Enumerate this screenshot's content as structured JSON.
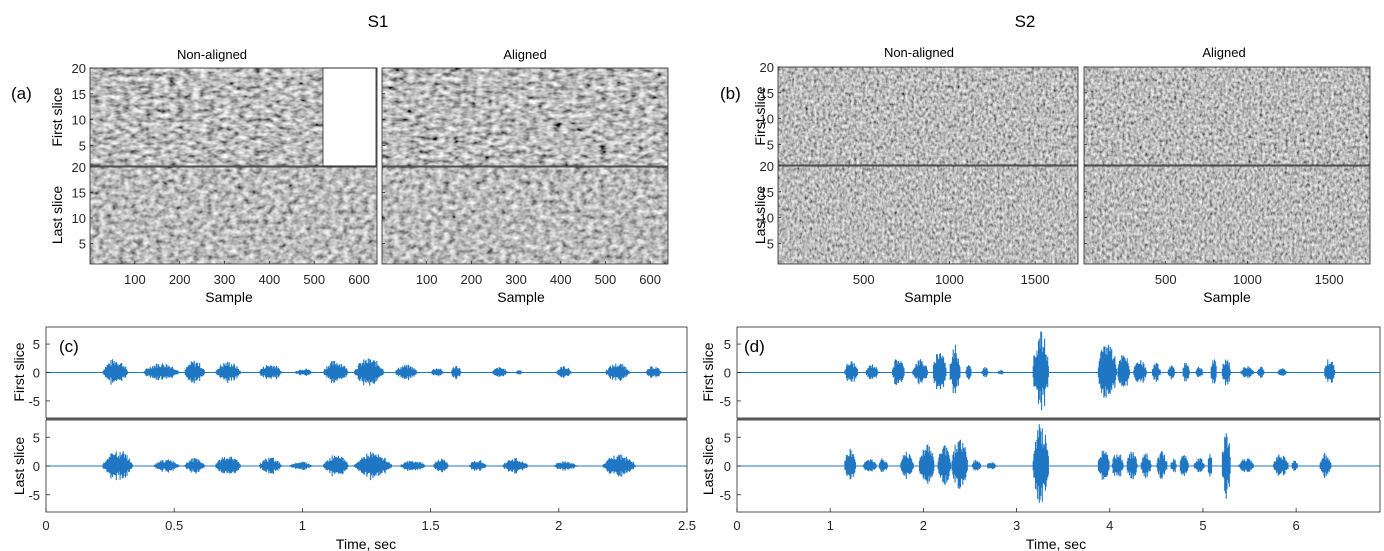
{
  "headers": {
    "s1": "S1",
    "s2": "S2",
    "non_aligned": "Non-aligned",
    "aligned": "Aligned"
  },
  "panel_labels": [
    "(a)",
    "(b)",
    "(c)",
    "(d)"
  ],
  "row_labels": {
    "first": "First slice",
    "last": "Last slice"
  },
  "colors": {
    "waveform": "#1f77c4",
    "axis": "#262626",
    "image_gray": "#8c8c8c"
  },
  "chart_data": [
    {
      "id": "a",
      "type": "heatmap",
      "label": "(a)",
      "title": "S1",
      "columns": [
        "Non-aligned",
        "Aligned"
      ],
      "rows": [
        "First slice",
        "Last slice"
      ],
      "xlabel": "Sample",
      "xlim": [
        0,
        640
      ],
      "xticks": [
        100,
        200,
        300,
        400,
        500,
        600
      ],
      "ylim": [
        1,
        20
      ],
      "yticks": [
        5,
        10,
        15,
        20
      ],
      "colormap": "gray"
    },
    {
      "id": "b",
      "type": "heatmap",
      "label": "(b)",
      "title": "S2",
      "columns": [
        "Non-aligned",
        "Aligned"
      ],
      "rows": [
        "First slice",
        "Last slice"
      ],
      "xlabel": "Sample",
      "xlim": [
        0,
        1750
      ],
      "xticks": [
        500,
        1000,
        1500
      ],
      "ylim": [
        1,
        20
      ],
      "yticks": [
        5,
        10,
        15,
        20
      ],
      "colormap": "gray"
    },
    {
      "id": "c",
      "type": "line",
      "label": "(c)",
      "xlabel": "Time, sec",
      "xlim": [
        0,
        2.5
      ],
      "xticks": [
        0,
        0.5,
        1,
        1.5,
        2,
        2.5
      ],
      "xtick_labels": [
        "0",
        "0.5",
        "1",
        "1.5",
        "2",
        "2.5"
      ],
      "ylim": [
        -8,
        8
      ],
      "yticks": [
        -5,
        0,
        5
      ],
      "series": [
        {
          "row": "First slice",
          "bursts": [
            [
              0.22,
              0.32,
              2.5
            ],
            [
              0.38,
              0.52,
              1.8
            ],
            [
              0.54,
              0.62,
              2.2
            ],
            [
              0.66,
              0.76,
              2.0
            ],
            [
              0.83,
              0.92,
              1.6
            ],
            [
              0.97,
              1.04,
              0.8
            ],
            [
              1.08,
              1.18,
              2.2
            ],
            [
              1.2,
              1.32,
              2.6
            ],
            [
              1.36,
              1.45,
              1.4
            ],
            [
              1.5,
              1.55,
              0.9
            ],
            [
              1.58,
              1.62,
              1.4
            ],
            [
              1.74,
              1.8,
              1.0
            ],
            [
              1.83,
              1.86,
              0.5
            ],
            [
              1.99,
              2.05,
              1.2
            ],
            [
              2.18,
              2.28,
              1.7
            ],
            [
              2.34,
              2.4,
              1.2
            ]
          ]
        },
        {
          "row": "Last slice",
          "bursts": [
            [
              0.22,
              0.34,
              2.9
            ],
            [
              0.42,
              0.52,
              1.2
            ],
            [
              0.54,
              0.62,
              1.4
            ],
            [
              0.66,
              0.76,
              2.0
            ],
            [
              0.83,
              0.92,
              1.6
            ],
            [
              0.95,
              1.04,
              0.8
            ],
            [
              1.08,
              1.18,
              2.0
            ],
            [
              1.2,
              1.35,
              2.5
            ],
            [
              1.38,
              1.48,
              1.0
            ],
            [
              1.51,
              1.57,
              1.5
            ],
            [
              1.65,
              1.72,
              1.1
            ],
            [
              1.78,
              1.88,
              1.4
            ],
            [
              1.98,
              2.07,
              0.9
            ],
            [
              2.17,
              2.3,
              2.1
            ]
          ]
        }
      ]
    },
    {
      "id": "d",
      "type": "line",
      "label": "(d)",
      "xlabel": "Time, sec",
      "xlim": [
        0,
        6.9
      ],
      "xticks": [
        0,
        1,
        2,
        3,
        4,
        5,
        6
      ],
      "xtick_labels": [
        "0",
        "1",
        "2",
        "3",
        "4",
        "5",
        "6"
      ],
      "ylim": [
        -8,
        8
      ],
      "yticks": [
        -5,
        0,
        5
      ],
      "series": [
        {
          "row": "First slice",
          "bursts": [
            [
              1.15,
              1.3,
              2.2
            ],
            [
              1.38,
              1.52,
              1.6
            ],
            [
              1.66,
              1.8,
              2.9
            ],
            [
              1.88,
              2.05,
              2.5
            ],
            [
              2.1,
              2.25,
              4.5
            ],
            [
              2.28,
              2.4,
              5.0
            ],
            [
              2.45,
              2.52,
              1.5
            ],
            [
              2.62,
              2.7,
              1.0
            ],
            [
              2.8,
              2.86,
              0.6
            ],
            [
              3.17,
              3.35,
              7.5
            ],
            [
              3.87,
              4.08,
              6.0
            ],
            [
              4.08,
              4.22,
              3.5
            ],
            [
              4.25,
              4.4,
              2.2
            ],
            [
              4.45,
              4.55,
              1.7
            ],
            [
              4.62,
              4.7,
              1.6
            ],
            [
              4.78,
              4.86,
              2.0
            ],
            [
              4.92,
              5.0,
              1.2
            ],
            [
              5.08,
              5.15,
              2.6
            ],
            [
              5.2,
              5.3,
              3.0
            ],
            [
              5.4,
              5.55,
              1.3
            ],
            [
              5.58,
              5.66,
              1.4
            ],
            [
              5.8,
              5.9,
              0.8
            ],
            [
              6.3,
              6.42,
              2.6
            ]
          ]
        },
        {
          "row": "Last slice",
          "bursts": [
            [
              1.15,
              1.28,
              3.3
            ],
            [
              1.35,
              1.5,
              1.5
            ],
            [
              1.52,
              1.62,
              1.5
            ],
            [
              1.75,
              1.9,
              2.8
            ],
            [
              1.95,
              2.12,
              4.1
            ],
            [
              2.15,
              2.3,
              3.8
            ],
            [
              2.3,
              2.48,
              5.2
            ],
            [
              2.52,
              2.62,
              1.2
            ],
            [
              2.68,
              2.78,
              0.9
            ],
            [
              3.17,
              3.35,
              7.6
            ],
            [
              3.87,
              4.0,
              3.2
            ],
            [
              4.02,
              4.15,
              2.6
            ],
            [
              4.18,
              4.3,
              2.7
            ],
            [
              4.33,
              4.45,
              2.2
            ],
            [
              4.5,
              4.62,
              2.6
            ],
            [
              4.65,
              4.72,
              1.5
            ],
            [
              4.75,
              4.85,
              2.4
            ],
            [
              4.9,
              5.02,
              1.6
            ],
            [
              5.05,
              5.1,
              2.5
            ],
            [
              5.2,
              5.3,
              6.5
            ],
            [
              5.38,
              5.55,
              1.4
            ],
            [
              5.75,
              5.92,
              2.4
            ],
            [
              5.95,
              6.02,
              1.3
            ],
            [
              6.25,
              6.38,
              2.3
            ]
          ]
        }
      ]
    }
  ]
}
